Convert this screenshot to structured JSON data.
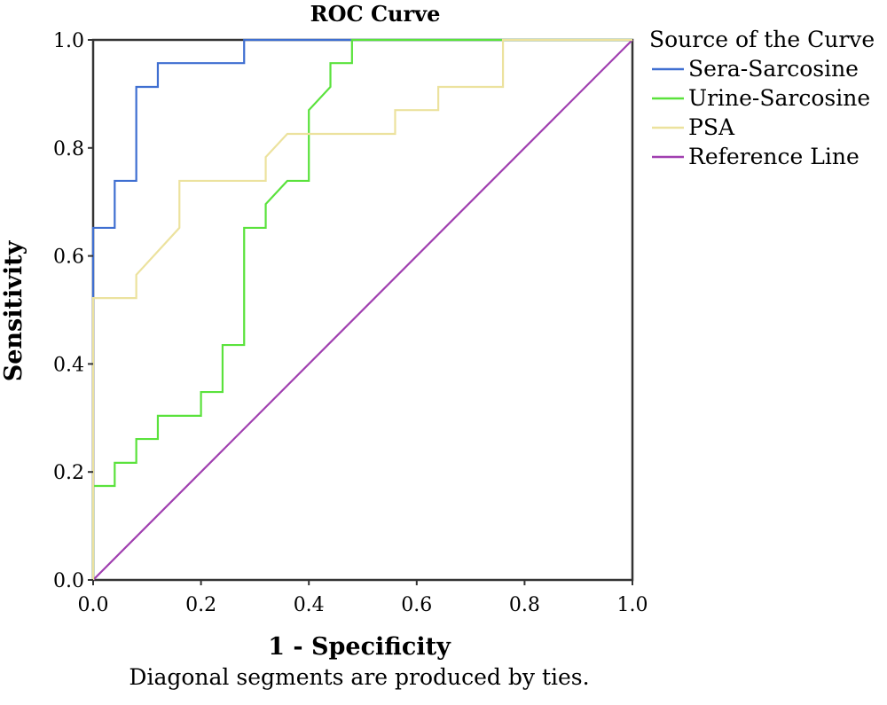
{
  "chart_data": {
    "type": "line",
    "title": "ROC Curve",
    "xlabel": "1 - Specificity",
    "ylabel": "Sensitivity",
    "xlim": [
      0,
      1
    ],
    "ylim": [
      0,
      1
    ],
    "x_ticks": [
      "0.0",
      "0.2",
      "0.4",
      "0.6",
      "0.8",
      "1.0"
    ],
    "y_ticks": [
      "0.0",
      "0.2",
      "0.4",
      "0.6",
      "0.8",
      "1.0"
    ],
    "footnote": "Diagonal segments are produced by ties.",
    "grid": false,
    "legend": {
      "title": "Source of the Curve",
      "placement": "right"
    },
    "series": [
      {
        "name": "Sera-Sarcosine",
        "color": "#3f6fd1",
        "x": [
          0,
          0,
          0.04,
          0.04,
          0.08,
          0.08,
          0.12,
          0.12,
          0.28,
          0.28,
          1
        ],
        "y": [
          0,
          0.652,
          0.652,
          0.739,
          0.739,
          0.913,
          0.913,
          0.957,
          0.957,
          1,
          1
        ]
      },
      {
        "name": "Urine-Sarcosine",
        "color": "#5ae23c",
        "x": [
          0,
          0,
          0.04,
          0.04,
          0.08,
          0.08,
          0.12,
          0.12,
          0.2,
          0.2,
          0.24,
          0.24,
          0.28,
          0.28,
          0.32,
          0.32,
          0.36,
          0.36,
          0.4,
          0.4,
          0.44,
          0.44,
          0.48,
          0.48,
          1
        ],
        "y": [
          0,
          0.174,
          0.174,
          0.217,
          0.217,
          0.261,
          0.261,
          0.304,
          0.304,
          0.348,
          0.348,
          0.435,
          0.435,
          0.652,
          0.652,
          0.696,
          0.739,
          0.739,
          0.739,
          0.87,
          0.913,
          0.957,
          0.957,
          1,
          1
        ]
      },
      {
        "name": "PSA",
        "color": "#ece29e",
        "x": [
          0,
          0,
          0.08,
          0.08,
          0.16,
          0.16,
          0.32,
          0.32,
          0.36,
          0.56,
          0.56,
          0.64,
          0.64,
          0.76,
          0.76,
          1
        ],
        "y": [
          0,
          0.522,
          0.522,
          0.565,
          0.652,
          0.739,
          0.739,
          0.783,
          0.826,
          0.826,
          0.87,
          0.87,
          0.913,
          0.913,
          1,
          1
        ]
      },
      {
        "name": "Reference Line",
        "color": "#a03fb0",
        "x": [
          0,
          1
        ],
        "y": [
          0,
          1
        ]
      }
    ]
  }
}
